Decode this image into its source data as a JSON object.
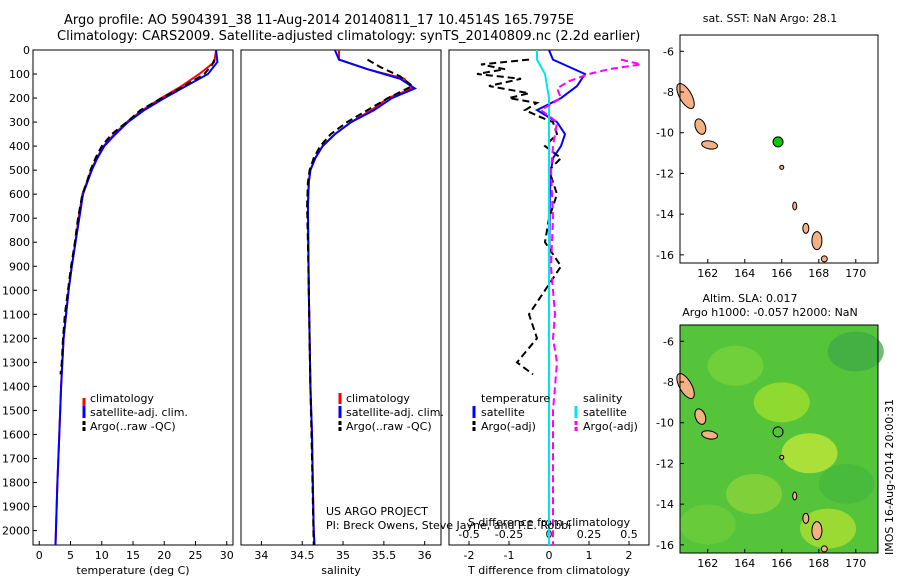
{
  "header": {
    "title_line1": "Argo profile: AO 5904391_38 11-Aug-2014 20140811_17 10.4514S 165.7975E",
    "title_line2": "Climatology: CARS2009. Satellite-adjusted climatology: synTS_20140809.nc (2.2d earlier)"
  },
  "colors": {
    "climatology": "#ff0000",
    "satellite": "#0000ff",
    "argo": "#000000",
    "sal_satellite": "#00e5ee",
    "sal_argo": "#ff00ff",
    "land": "#f4b183",
    "argo_marker": "#00cc00"
  },
  "legend": {
    "climatology": "climatology",
    "satellite_adj": "satellite-adj. clim.",
    "argo_raw": "Argo(..raw -QC)",
    "diff_temperature": "temperature",
    "diff_salinity": "salinity",
    "diff_satellite": "satellite",
    "diff_argo": "Argo(-adj)"
  },
  "credits": {
    "project": "US ARGO PROJECT",
    "pi": "PI: Breck Owens, Steve Jayne, and P.E. Robbi"
  },
  "right_panels": {
    "sst_title": "sat. SST: NaN Argo: 28.1",
    "sla_title1": "Altim. SLA: 0.017",
    "sla_title2": "Argo h1000: -0.057 h2000: NaN",
    "timestamp": "IMOS 16-Aug-2014 20:00:31"
  },
  "chart_data": [
    {
      "type": "line",
      "name": "temperature profile",
      "xlabel": "temperature (deg C)",
      "ylabel": "",
      "xlim": [
        -1,
        31
      ],
      "ylim": [
        0,
        2060
      ],
      "y_inverted": true,
      "xticks": [
        0,
        5,
        10,
        15,
        20,
        25,
        30
      ],
      "yticks": [
        0,
        100,
        200,
        300,
        400,
        500,
        600,
        700,
        800,
        900,
        1000,
        1100,
        1200,
        1300,
        1400,
        1500,
        1600,
        1700,
        1800,
        1900,
        2000
      ],
      "series": [
        {
          "name": "climatology",
          "color": "#ff0000",
          "dash": false,
          "x": [
            28.3,
            28.0,
            25.6,
            22.8,
            19.5,
            16.5,
            14.0,
            12.0,
            10.3,
            9.2,
            8.3,
            7.6,
            6.9,
            6.3,
            5.8,
            5.2,
            4.7,
            4.3,
            3.9,
            3.5,
            3.2,
            2.9,
            2.6
          ],
          "y": [
            0,
            50,
            100,
            150,
            200,
            250,
            300,
            350,
            400,
            450,
            500,
            550,
            600,
            700,
            800,
            900,
            1000,
            1100,
            1200,
            1400,
            1600,
            1800,
            2060
          ]
        },
        {
          "name": "satellite-adj. clim.",
          "color": "#0000ff",
          "dash": false,
          "x": [
            28.3,
            28.5,
            27.0,
            23.5,
            20.0,
            16.8,
            14.2,
            12.2,
            10.4,
            9.3,
            8.4,
            7.7,
            7.0,
            6.4,
            5.8,
            5.2,
            4.7,
            4.3,
            3.9,
            3.5,
            3.2,
            2.9,
            2.6
          ],
          "y": [
            0,
            50,
            100,
            150,
            200,
            250,
            300,
            350,
            400,
            450,
            500,
            550,
            600,
            700,
            800,
            900,
            1000,
            1100,
            1200,
            1400,
            1600,
            1800,
            2060
          ]
        },
        {
          "name": "Argo(..raw -QC)",
          "color": "#000000",
          "dash": true,
          "x": [
            28.0,
            27.7,
            26.4,
            23.2,
            19.6,
            16.2,
            14.0,
            11.6,
            10.0,
            9.0,
            8.2,
            7.6,
            6.9,
            6.2,
            5.7,
            5.1,
            4.6,
            4.1,
            3.8,
            3.6,
            3.4
          ],
          "y": [
            40,
            60,
            100,
            150,
            200,
            250,
            300,
            350,
            400,
            450,
            500,
            550,
            600,
            700,
            800,
            900,
            1000,
            1100,
            1200,
            1300,
            1350
          ]
        }
      ]
    },
    {
      "type": "line",
      "name": "salinity profile",
      "xlabel": "salinity",
      "xlim": [
        33.75,
        36.2
      ],
      "ylim": [
        0,
        2060
      ],
      "y_inverted": true,
      "xticks": [
        34,
        34.5,
        35,
        35.5,
        36
      ],
      "series": [
        {
          "name": "climatology",
          "color": "#ff0000",
          "dash": false,
          "x": [
            34.95,
            34.95,
            35.3,
            35.75,
            35.85,
            35.55,
            35.35,
            35.1,
            34.9,
            34.75,
            34.66,
            34.6,
            34.58,
            34.57,
            34.575,
            34.58,
            34.59,
            34.6,
            34.62,
            34.63,
            34.64,
            34.65
          ],
          "y": [
            0,
            40,
            80,
            120,
            160,
            200,
            250,
            300,
            350,
            400,
            450,
            500,
            550,
            650,
            800,
            1000,
            1200,
            1400,
            1600,
            1800,
            2000,
            2060
          ]
        },
        {
          "name": "satellite-adj. clim.",
          "color": "#0000ff",
          "dash": false,
          "x": [
            34.9,
            34.95,
            35.3,
            35.7,
            35.88,
            35.6,
            35.38,
            35.1,
            34.9,
            34.75,
            34.66,
            34.6,
            34.58,
            34.57,
            34.575,
            34.58,
            34.59,
            34.6,
            34.62,
            34.63,
            34.64,
            34.65
          ],
          "y": [
            0,
            40,
            80,
            120,
            160,
            200,
            250,
            300,
            350,
            400,
            450,
            500,
            550,
            650,
            800,
            1000,
            1200,
            1400,
            1600,
            1800,
            2000,
            2060
          ]
        },
        {
          "name": "Argo(..raw -QC)",
          "color": "#000000",
          "dash": true,
          "x": [
            35.3,
            35.45,
            35.7,
            35.85,
            35.55,
            35.3,
            35.05,
            34.85,
            34.72,
            34.64,
            34.59,
            34.57,
            34.56,
            34.57,
            34.58,
            34.59,
            34.6,
            34.62,
            34.64
          ],
          "y": [
            40,
            70,
            110,
            150,
            200,
            250,
            300,
            350,
            400,
            450,
            500,
            550,
            650,
            800,
            1000,
            1200,
            1400,
            1700,
            2060
          ]
        }
      ]
    },
    {
      "type": "line",
      "name": "difference from climatology",
      "xlabel": "T difference from climatology",
      "xlabel_secondary": "S difference from climatology",
      "xlim": [
        -2.5,
        2.5
      ],
      "ylim": [
        0,
        2060
      ],
      "y_inverted": true,
      "xticks": [
        -2,
        -1,
        0,
        1,
        2
      ],
      "xticks_secondary_labels": [
        "-0.5",
        "-0.25",
        "0",
        "0.25",
        "0.5"
      ],
      "series": [
        {
          "name": "temperature satellite",
          "color": "#0000ff",
          "dash": false,
          "x": [
            0,
            0.1,
            0.9,
            0.7,
            0.3,
            -0.3,
            0.2,
            0.4,
            0.3,
            0.1,
            0.05,
            0.02,
            0.01,
            0,
            0,
            0,
            0,
            0
          ],
          "y": [
            0,
            40,
            100,
            150,
            200,
            250,
            300,
            350,
            400,
            450,
            500,
            600,
            800,
            1000,
            1200,
            1500,
            1800,
            2060
          ]
        },
        {
          "name": "temperature Argo(-adj)",
          "color": "#000000",
          "dash": true,
          "x": [
            -0.5,
            -1.7,
            -1.1,
            -1.8,
            -0.7,
            -1.5,
            -0.5,
            -1.0,
            -0.3,
            -0.6,
            -0.2,
            0.1,
            0.2,
            -0.1,
            0.3,
            0,
            0.2,
            0,
            -0.1,
            0.3,
            -0.1,
            -0.5,
            -0.3,
            -0.8,
            -0.4
          ],
          "y": [
            40,
            60,
            80,
            100,
            120,
            150,
            180,
            200,
            220,
            250,
            280,
            300,
            350,
            400,
            450,
            500,
            600,
            700,
            800,
            900,
            1000,
            1100,
            1200,
            1300,
            1350
          ]
        },
        {
          "name": "salinity satellite",
          "color": "#00e5ee",
          "dash": false,
          "x": [
            -0.3,
            -0.3,
            -0.1,
            0,
            0,
            0,
            0,
            0,
            0,
            0
          ],
          "y": [
            0,
            40,
            100,
            200,
            400,
            600,
            1000,
            1400,
            1800,
            2060
          ]
        },
        {
          "name": "salinity Argo(-adj)",
          "color": "#ff00ff",
          "dash": true,
          "x": [
            1.8,
            2.3,
            1.5,
            1.0,
            0.5,
            0.2,
            0.3,
            -0.2,
            0.2,
            0.1,
            0.05,
            0.1,
            0.05,
            0.15,
            0.1,
            0.2,
            0.1,
            0.1
          ],
          "y": [
            40,
            60,
            80,
            100,
            130,
            160,
            200,
            250,
            300,
            400,
            500,
            700,
            900,
            1100,
            1200,
            1300,
            1500,
            2060
          ]
        }
      ]
    }
  ],
  "maps": {
    "sst": {
      "xlim": [
        160.5,
        171.2
      ],
      "ylim": [
        -16.4,
        -5.2
      ],
      "xticks": [
        162,
        164,
        166,
        168,
        170
      ],
      "yticks": [
        -6,
        -8,
        -10,
        -12,
        -14,
        -16
      ],
      "argo_lon": 165.7975,
      "argo_lat": -10.4514
    },
    "sla": {
      "xlim": [
        160.5,
        171.2
      ],
      "ylim": [
        -16.4,
        -5.2
      ],
      "xticks": [
        162,
        164,
        166,
        168,
        170
      ],
      "yticks": [
        -6,
        -8,
        -10,
        -12,
        -14,
        -16
      ],
      "argo_lon": 165.7975,
      "argo_lat": -10.4514
    }
  }
}
